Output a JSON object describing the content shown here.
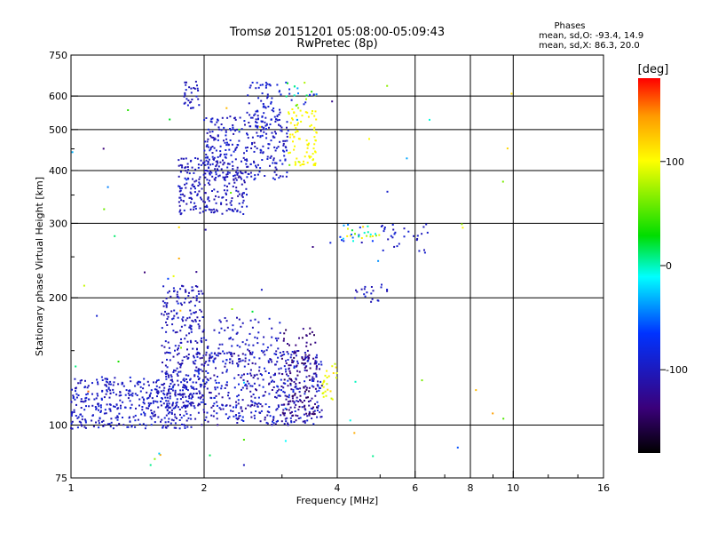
{
  "chart_data": {
    "type": "scatter",
    "title": "Tromsø 20151201 05:08:00-05:09:43",
    "subtitle": "RwPretec (8p)",
    "stats": {
      "heading": "Phases",
      "line1": "mean, sd,O: -93.4, 14.9",
      "line2": "mean, sd,X: 86.3, 20.0"
    },
    "xlabel": "Frequency [MHz]",
    "ylabel": "Stationary phase Virtual Height [km]",
    "x_scale": "log",
    "y_scale": "log",
    "xlim": [
      1,
      16
    ],
    "ylim": [
      75,
      750
    ],
    "x_ticks": [
      1,
      2,
      4,
      6,
      8,
      10,
      16
    ],
    "x_tick_labels": [
      "1",
      "2",
      "4",
      "6",
      "8",
      "10",
      "16"
    ],
    "y_ticks": [
      75,
      100,
      200,
      300,
      400,
      500,
      600,
      750
    ],
    "y_tick_labels": [
      "75",
      "100",
      "200",
      "300",
      "400",
      "500",
      "600",
      "750"
    ],
    "grid": true,
    "colorbar": {
      "label": "[deg]",
      "range": [
        -180,
        180
      ],
      "ticks": [
        100,
        0,
        -100
      ],
      "tick_labels": [
        "100",
        "0",
        "-100"
      ],
      "colors": [
        "#000000",
        "#3a007a",
        "#0033ff",
        "#00ffff",
        "#00dd00",
        "#ffff00",
        "#ff9900",
        "#ff0000"
      ]
    },
    "clusters": [
      {
        "x": [
          1.0,
          1.9
        ],
        "y": [
          98,
          130
        ],
        "phase": [
          -110,
          -85
        ],
        "density": 420
      },
      {
        "x": [
          1.6,
          2.0
        ],
        "y": [
          110,
          215
        ],
        "phase": [
          -115,
          -90
        ],
        "density": 260
      },
      {
        "x": [
          1.9,
          3.7
        ],
        "y": [
          100,
          150
        ],
        "phase": [
          -125,
          -80
        ],
        "density": 520
      },
      {
        "x": [
          2.0,
          3.0
        ],
        "y": [
          150,
          180
        ],
        "phase": [
          -110,
          -90
        ],
        "density": 60
      },
      {
        "x": [
          3.0,
          3.6
        ],
        "y": [
          105,
          170
        ],
        "phase": [
          -150,
          -125
        ],
        "density": 110
      },
      {
        "x": [
          1.75,
          2.5
        ],
        "y": [
          315,
          430
        ],
        "phase": [
          -115,
          -90
        ],
        "density": 240
      },
      {
        "x": [
          2.0,
          3.1
        ],
        "y": [
          380,
          540
        ],
        "phase": [
          -110,
          -85
        ],
        "density": 260
      },
      {
        "x": [
          2.5,
          3.0
        ],
        "y": [
          480,
          650
        ],
        "phase": [
          -105,
          -85
        ],
        "density": 80
      },
      {
        "x": [
          1.8,
          1.95
        ],
        "y": [
          560,
          650
        ],
        "phase": [
          -110,
          -90
        ],
        "density": 30
      },
      {
        "x": [
          3.1,
          3.6
        ],
        "y": [
          410,
          560
        ],
        "phase": [
          95,
          110
        ],
        "density": 80
      },
      {
        "x": [
          3.0,
          3.6
        ],
        "y": [
          560,
          650
        ],
        "phase": [
          -100,
          80
        ],
        "density": 25
      },
      {
        "x": [
          4.0,
          5.0
        ],
        "y": [
          270,
          300
        ],
        "phase": [
          -110,
          120
        ],
        "density": 30
      },
      {
        "x": [
          5.0,
          6.5
        ],
        "y": [
          255,
          300
        ],
        "phase": [
          -110,
          -85
        ],
        "density": 30
      },
      {
        "x": [
          4.3,
          5.2
        ],
        "y": [
          195,
          215
        ],
        "phase": [
          -110,
          -90
        ],
        "density": 20
      },
      {
        "x": [
          3.7,
          4.0
        ],
        "y": [
          115,
          150
        ],
        "phase": [
          80,
          120
        ],
        "density": 25
      },
      {
        "x": [
          1.0,
          11.0
        ],
        "y": [
          75,
          650
        ],
        "phase": [
          -140,
          160
        ],
        "density": 70
      }
    ]
  }
}
